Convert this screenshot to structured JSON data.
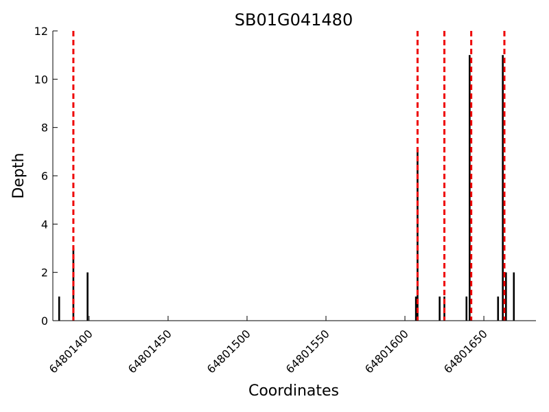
{
  "chart_data": {
    "type": "bar",
    "title": "SB01G041480",
    "xlabel": "Coordinates",
    "ylabel": "Depth",
    "xlim": [
      64801377,
      64801683
    ],
    "ylim": [
      0,
      12
    ],
    "grid": false,
    "legend": "none",
    "x_ticks": [
      64801400,
      64801450,
      64801500,
      64801550,
      64801600,
      64801650
    ],
    "x_tick_labels": [
      "64801400",
      "64801450",
      "64801500",
      "64801550",
      "64801600",
      "64801650"
    ],
    "y_ticks": [
      0,
      2,
      4,
      6,
      8,
      10,
      12
    ],
    "y_tick_labels": [
      "0",
      "2",
      "4",
      "6",
      "8",
      "10",
      "12"
    ],
    "series": [
      {
        "x": [
          64801381,
          64801390,
          64801399,
          64801607,
          64801608,
          64801622,
          64801625,
          64801639,
          64801641,
          64801659,
          64801662,
          64801664,
          64801669
        ],
        "values": [
          1,
          3,
          2,
          1,
          7,
          1,
          1,
          1,
          11,
          1,
          11,
          2,
          2
        ],
        "color": "#000000"
      }
    ],
    "vlines": [
      {
        "x": 64801390,
        "color": "#ee0000",
        "style": "dashed"
      },
      {
        "x": 64801608,
        "color": "#ee0000",
        "style": "dashed"
      },
      {
        "x": 64801625,
        "color": "#ee0000",
        "style": "dashed"
      },
      {
        "x": 64801642,
        "color": "#ee0000",
        "style": "dashed"
      },
      {
        "x": 64801663,
        "color": "#ee0000",
        "style": "dashed"
      }
    ]
  }
}
